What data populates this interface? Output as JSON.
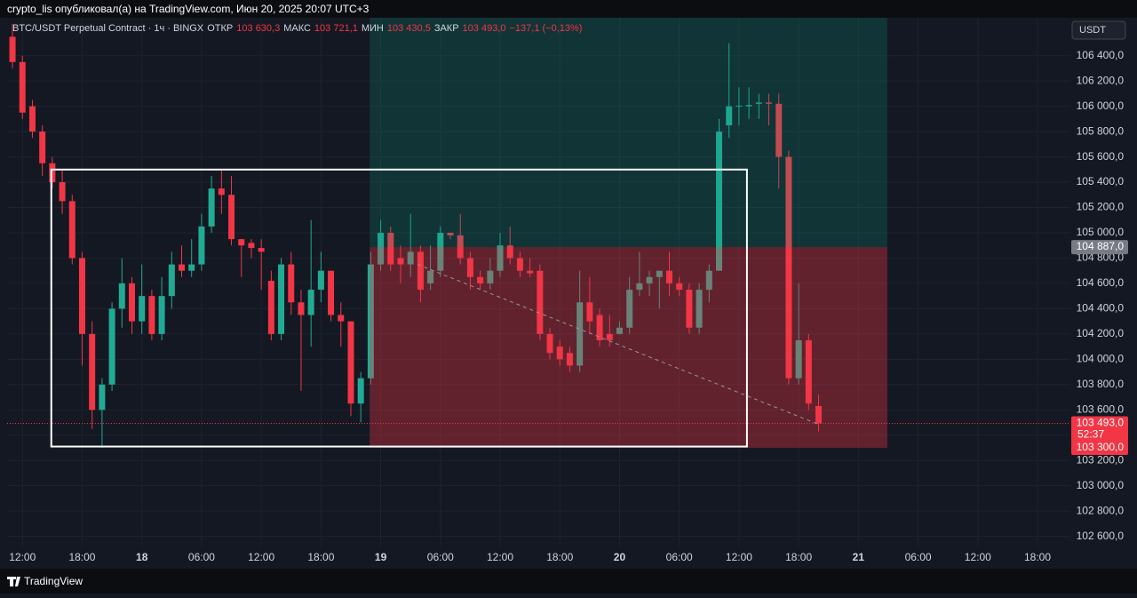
{
  "header": {
    "text": "crypto_lis опубликовал(а) на TradingView.com, Июн 20, 2025 20:07 UTC+3"
  },
  "footer": {
    "brand": "TradingView"
  },
  "chart_data": {
    "type": "candlestick",
    "title": "BTC/USDT Perpetual Contract · 1ч · BINGX",
    "legend": [
      {
        "label": "ОТКР",
        "value": "103 630,3"
      },
      {
        "label": "МАКС",
        "value": "103 721,1"
      },
      {
        "label": "МИН",
        "value": "103 430,5"
      },
      {
        "label": "ЗАКР",
        "value": "103 493,0"
      }
    ],
    "change": "−137,1 (−0,13%)",
    "currency": "USDT",
    "open": [
      106550,
      106350,
      106000,
      105800,
      105550,
      105400,
      105250,
      104800,
      104200,
      103600,
      103800,
      104400,
      104600,
      104300,
      104500,
      104200,
      104500,
      104750,
      104700,
      104750,
      105050,
      105350,
      105300,
      104950,
      104920,
      104880,
      104620,
      104200,
      104750,
      104450,
      104350,
      104550,
      104700,
      104350,
      104300,
      103650,
      103850,
      104750,
      105000,
      104800,
      104750,
      104850,
      104600,
      104700,
      105000,
      104980,
      104800,
      104650,
      104600,
      104700,
      104900,
      104800,
      104700,
      104700,
      104200,
      104100,
      104050,
      103950,
      104450,
      104350,
      104200,
      104200,
      104250,
      104550,
      104600,
      104650,
      104700,
      104600,
      104550,
      104250,
      104550,
      104700,
      105850,
      106000,
      106000,
      106020,
      106030,
      106020,
      105600,
      103850,
      104150,
      103630.3
    ],
    "high": [
      106650,
      106400,
      106050,
      105850,
      105600,
      105500,
      105300,
      104850,
      104300,
      103850,
      104450,
      104800,
      104650,
      104750,
      104550,
      104650,
      104850,
      104900,
      104950,
      105150,
      105450,
      105500,
      105450,
      104950,
      104950,
      104950,
      104700,
      104800,
      104850,
      104550,
      105100,
      104850,
      104700,
      104450,
      104300,
      103900,
      104850,
      105100,
      105050,
      104900,
      105150,
      104900,
      104900,
      105050,
      105000,
      105150,
      104850,
      104700,
      104800,
      105000,
      105050,
      104850,
      104800,
      104750,
      104250,
      104150,
      104100,
      104700,
      104650,
      104400,
      104350,
      104300,
      104650,
      104850,
      104700,
      104700,
      104850,
      104650,
      104600,
      104600,
      104750,
      105900,
      106500,
      106150,
      106150,
      106100,
      106100,
      106100,
      105650,
      104600,
      104200,
      103721.1
    ],
    "low": [
      106300,
      105900,
      105750,
      105450,
      105350,
      105150,
      104750,
      103950,
      103450,
      103300,
      103750,
      104250,
      104200,
      104200,
      104150,
      104150,
      104400,
      104650,
      104650,
      104700,
      105000,
      105150,
      104900,
      104650,
      104800,
      104550,
      104150,
      104150,
      104350,
      103750,
      104100,
      104450,
      104300,
      104100,
      103550,
      103500,
      103800,
      104700,
      104700,
      104600,
      104650,
      104450,
      104550,
      104650,
      104950,
      104750,
      104550,
      104550,
      104550,
      104650,
      104750,
      104650,
      104650,
      104150,
      104000,
      103950,
      103900,
      103900,
      104200,
      104100,
      104100,
      104200,
      104200,
      104500,
      104500,
      104400,
      104500,
      104500,
      104200,
      104200,
      104450,
      104700,
      105750,
      105850,
      105900,
      105900,
      105850,
      105350,
      103800,
      103800,
      103600,
      103430.5
    ],
    "close": [
      106350,
      105950,
      105800,
      105550,
      105400,
      105250,
      104800,
      104200,
      103600,
      103800,
      104400,
      104600,
      104300,
      104500,
      104200,
      104500,
      104750,
      104700,
      104750,
      105050,
      105350,
      105300,
      104950,
      104900,
      104880,
      104850,
      104200,
      104750,
      104450,
      104350,
      104550,
      104700,
      104350,
      104300,
      103650,
      103850,
      104750,
      105000,
      104750,
      104750,
      104850,
      104550,
      104700,
      105000,
      104980,
      104800,
      104650,
      104600,
      104700,
      104900,
      104800,
      104700,
      104680,
      104200,
      104050,
      104000,
      103950,
      104450,
      104300,
      104150,
      104150,
      104250,
      104550,
      104600,
      104650,
      104700,
      104600,
      104550,
      104250,
      104550,
      104700,
      105800,
      106000,
      106005,
      106010,
      106030,
      106020,
      105600,
      103850,
      104150,
      103650,
      103493
    ],
    "up_color": "#22ab94",
    "down_color": "#f23645",
    "xlim": [
      -0.54,
      106.3
    ],
    "xticks": [
      {
        "value": 1,
        "label": "12:00"
      },
      {
        "value": 7,
        "label": "18:00"
      },
      {
        "value": 13,
        "label": "18"
      },
      {
        "value": 19,
        "label": "06:00"
      },
      {
        "value": 25,
        "label": "12:00"
      },
      {
        "value": 31,
        "label": "18:00"
      },
      {
        "value": 37,
        "label": "19"
      },
      {
        "value": 43,
        "label": "06:00"
      },
      {
        "value": 49,
        "label": "12:00"
      },
      {
        "value": 55,
        "label": "18:00"
      },
      {
        "value": 61,
        "label": "20"
      },
      {
        "value": 67,
        "label": "06:00"
      },
      {
        "value": 73,
        "label": "12:00"
      },
      {
        "value": 79,
        "label": "18:00"
      },
      {
        "value": 85,
        "label": "21"
      },
      {
        "value": 91,
        "label": "06:00"
      },
      {
        "value": 97,
        "label": "12:00"
      },
      {
        "value": 103,
        "label": "18:00"
      }
    ],
    "ylim": [
      102520,
      106700
    ],
    "yticks": [
      {
        "value": 102600,
        "label": "102 600,0"
      },
      {
        "value": 102800,
        "label": "102 800,0"
      },
      {
        "value": 103000,
        "label": "103 000,0"
      },
      {
        "value": 103200,
        "label": "103 200,0"
      },
      {
        "value": 103400,
        "label": "103 400,0"
      },
      {
        "value": 103600,
        "label": "103 600,0"
      },
      {
        "value": 103800,
        "label": "103 800,0"
      },
      {
        "value": 104000,
        "label": "104 000,0"
      },
      {
        "value": 104200,
        "label": "104 200,0"
      },
      {
        "value": 104400,
        "label": "104 400,0"
      },
      {
        "value": 104600,
        "label": "104 600,0"
      },
      {
        "value": 104800,
        "label": "104 800,0"
      },
      {
        "value": 105000,
        "label": "105 000,0"
      },
      {
        "value": 105200,
        "label": "105 200,0"
      },
      {
        "value": 105400,
        "label": "105 400,0"
      },
      {
        "value": 105600,
        "label": "105 600,0"
      },
      {
        "value": 105800,
        "label": "105 800,0"
      },
      {
        "value": 106000,
        "label": "106 000,0"
      },
      {
        "value": 106200,
        "label": "106 200,0"
      },
      {
        "value": 106400,
        "label": "106 400,0"
      }
    ],
    "last_price": {
      "value": 103493,
      "label": "103 493,0",
      "countdown": "52:37"
    },
    "rectangle": {
      "x": [
        3.9,
        73.8
      ],
      "y": [
        103310,
        105500
      ]
    },
    "trend_line": {
      "x": [
        40.7,
        81
      ],
      "y": [
        104750,
        103485
      ]
    },
    "position": {
      "x": [
        35.9,
        87.9
      ],
      "entry": 104887,
      "entry_label": "104 887,0",
      "stop": 103300,
      "stop_label": "103 300,0",
      "target": 106750
    }
  }
}
